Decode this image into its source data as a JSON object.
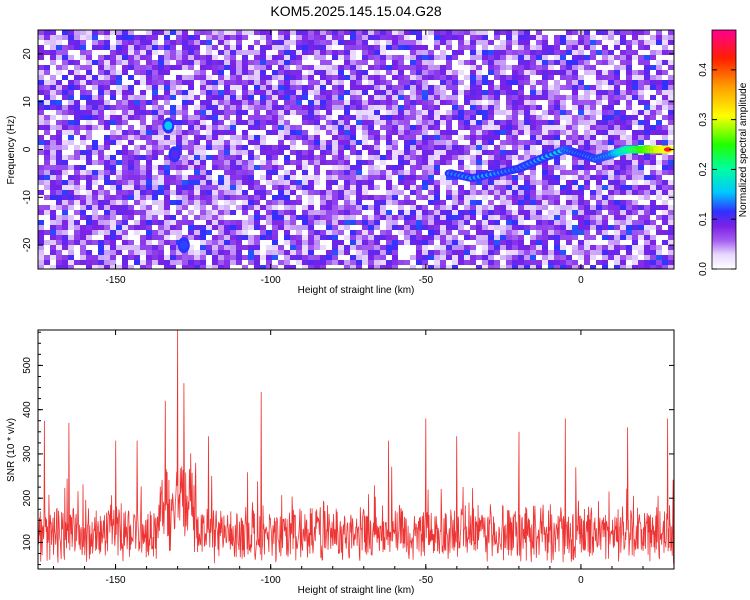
{
  "title": "KOM5.2025.145.15.04.G28",
  "chart_data": [
    {
      "type": "heatmap",
      "xlabel": "Height of straight line (km)",
      "ylabel": "Frequency (Hz)",
      "xlim": [
        -175,
        30
      ],
      "ylim": [
        -25,
        25
      ],
      "xticks": [
        -150,
        -100,
        -50,
        0
      ],
      "yticks": [
        -20,
        -10,
        0,
        10,
        20
      ],
      "colorbar": {
        "label": "Normalized spectral amplitude",
        "range": [
          0.0,
          0.48
        ],
        "ticks": [
          0.0,
          0.1,
          0.2,
          0.3,
          0.4
        ],
        "colors": [
          "#ffffff",
          "#e8d8ff",
          "#a45cf0",
          "#7a22e6",
          "#3030ff",
          "#00c8ff",
          "#00ffa0",
          "#20ff00",
          "#ffff00",
          "#ffa000",
          "#ff2000",
          "#ff0090"
        ]
      },
      "background_level": 0.05,
      "signal_track": [
        {
          "x": -42,
          "y": -5,
          "amp": 0.14
        },
        {
          "x": -35,
          "y": -6,
          "amp": 0.15
        },
        {
          "x": -27,
          "y": -5,
          "amp": 0.15
        },
        {
          "x": -20,
          "y": -4,
          "amp": 0.13
        },
        {
          "x": -13,
          "y": -2,
          "amp": 0.15
        },
        {
          "x": -5,
          "y": 0,
          "amp": 0.18
        },
        {
          "x": 0,
          "y": -1,
          "amp": 0.16
        },
        {
          "x": 5,
          "y": -2,
          "amp": 0.17
        },
        {
          "x": 10,
          "y": -1,
          "amp": 0.18
        },
        {
          "x": 15,
          "y": 0,
          "amp": 0.27
        },
        {
          "x": 20,
          "y": 0,
          "amp": 0.35
        },
        {
          "x": 25,
          "y": 0,
          "amp": 0.42
        },
        {
          "x": 28,
          "y": 0,
          "amp": 0.44
        }
      ],
      "secondary_sources": [
        {
          "x": -133,
          "y": 5,
          "amp": 0.16
        },
        {
          "x": -131,
          "y": -1,
          "amp": 0.1
        },
        {
          "x": -128,
          "y": -20,
          "amp": 0.12
        }
      ]
    },
    {
      "type": "line",
      "xlabel": "Height of straight line (km)",
      "ylabel": "SNR (10 * v/v)",
      "xlim": [
        -175,
        30
      ],
      "ylim": [
        40,
        580
      ],
      "xticks": [
        -150,
        -100,
        -50,
        0
      ],
      "yticks": [
        100,
        200,
        300,
        400,
        500
      ],
      "color": "#ee3333",
      "baseline_mean": 120,
      "noise_spread": 60,
      "peaks": [
        {
          "x": -130,
          "y": 580
        },
        {
          "x": -128,
          "y": 460
        },
        {
          "x": -134,
          "y": 420
        },
        {
          "x": -103,
          "y": 440
        },
        {
          "x": -165,
          "y": 370
        },
        {
          "x": -173,
          "y": 375
        },
        {
          "x": -150,
          "y": 330
        },
        {
          "x": -143,
          "y": 330
        },
        {
          "x": -120,
          "y": 340
        },
        {
          "x": -62,
          "y": 330
        },
        {
          "x": -50,
          "y": 380
        },
        {
          "x": -40,
          "y": 340
        },
        {
          "x": -20,
          "y": 350
        },
        {
          "x": -5,
          "y": 380
        },
        {
          "x": 15,
          "y": 360
        },
        {
          "x": 28,
          "y": 380
        }
      ]
    }
  ]
}
